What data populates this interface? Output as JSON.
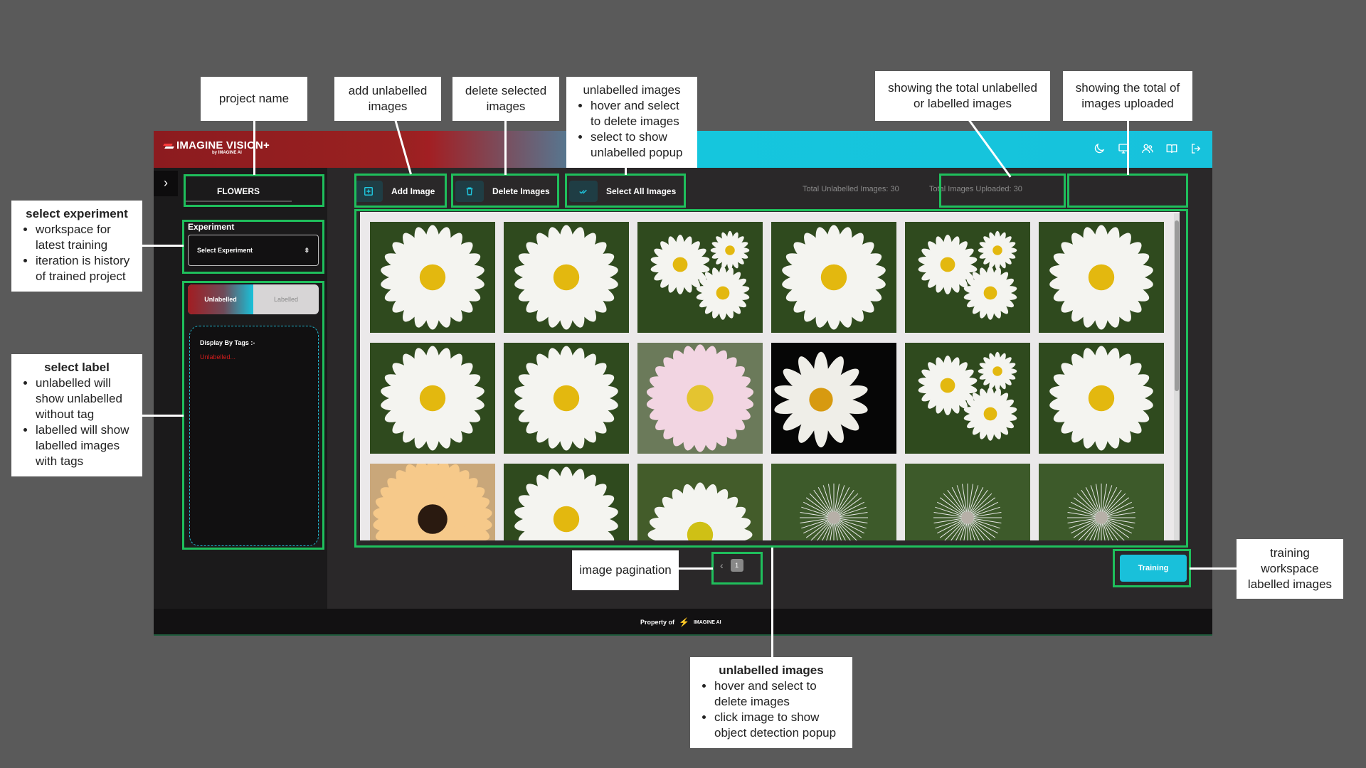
{
  "app": {
    "brand": "IMAGINE VISION+",
    "brand_sub": "by IMAGINE AI",
    "project_name": "FLOWERS",
    "experiment_label": "Experiment",
    "experiment_select": "Select Experiment",
    "tab_unlabelled": "Unlabelled",
    "tab_labelled": "Labelled",
    "tags_title": "Display By Tags :-",
    "tags_item": "Unlabelled...",
    "toolbar": {
      "add_label": "Add Image",
      "delete_label": "Delete Images",
      "select_all_label": "Select All Images"
    },
    "stats": {
      "unlabelled": "Total Unlabelled Images: 30",
      "uploaded": "Total Images Uploaded: 30"
    },
    "pagination": {
      "prev": "‹",
      "current": "1"
    },
    "training_button": "Training",
    "footer": {
      "text": "Property of",
      "logo": "IMAGINE AI"
    },
    "top_icons": [
      "moon-icon",
      "monitor-icon",
      "users-icon",
      "book-icon",
      "logout-icon"
    ],
    "gallery_images": [
      "daisy",
      "daisy",
      "daisies",
      "daisy",
      "daisies",
      "daisy",
      "daisy",
      "daisy",
      "pink-daisy",
      "daisy-side",
      "daisies",
      "daisy",
      "gerbera",
      "daisy",
      "daisy-low",
      "dandelion",
      "dandelion",
      "dandelion"
    ]
  },
  "callouts": {
    "project_name": "project name",
    "add_unlabelled": "add unlabelled images",
    "delete_selected": "delete selected images",
    "unlabelled_top": {
      "title": "unlabelled images",
      "items": [
        "hover and select to delete images",
        "select to show unlabelled popup"
      ]
    },
    "total_unlabelled": "showing the total unlabelled or labelled images",
    "total_uploaded": "showing the total of images uploaded",
    "select_experiment": {
      "title": "select experiment",
      "items": [
        "workspace for latest training",
        "iteration is history of trained project"
      ]
    },
    "select_label": {
      "title": "select label",
      "items": [
        "unlabelled will show unlabelled without tag",
        "labelled will show labelled images with tags"
      ]
    },
    "image_pagination": "image pagination",
    "training_workspace": "training workspace labelled images",
    "unlabelled_bottom": {
      "title": "unlabelled images",
      "items": [
        "hover and select to delete images",
        "click image to show object detection popup"
      ]
    }
  },
  "colors": {
    "background": "#5a5a5a",
    "highlight": "#1fbf5c",
    "accent": "#19c0da",
    "brand_red": "#a21f23"
  }
}
